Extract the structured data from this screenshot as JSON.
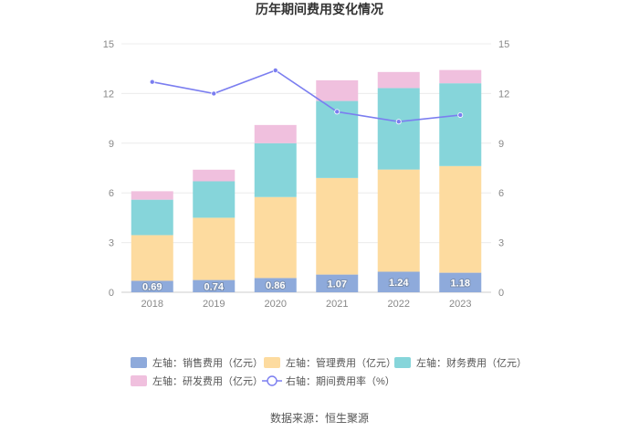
{
  "chart_data": {
    "type": "bar",
    "title": "历年期间费用变化情况",
    "categories": [
      "2018",
      "2019",
      "2020",
      "2021",
      "2022",
      "2023"
    ],
    "stacked": true,
    "left_axis": {
      "min": 0,
      "max": 15,
      "ticks": [
        0,
        3,
        6,
        9,
        12,
        15
      ]
    },
    "right_axis": {
      "min": 0,
      "max": 15,
      "ticks": [
        0,
        3,
        6,
        9,
        12,
        15
      ]
    },
    "series": [
      {
        "name": "左轴：销售费用（亿元）",
        "axis": "left",
        "type": "bar",
        "color": "#8eaadb",
        "values": [
          0.69,
          0.74,
          0.86,
          1.07,
          1.24,
          1.18
        ],
        "show_labels": true
      },
      {
        "name": "左轴：管理费用（亿元）",
        "axis": "left",
        "type": "bar",
        "color": "#fddb9f",
        "values": [
          2.76,
          3.76,
          4.89,
          5.83,
          6.17,
          6.44
        ]
      },
      {
        "name": "左轴：财务费用（亿元）",
        "axis": "left",
        "type": "bar",
        "color": "#86d5da",
        "values": [
          2.14,
          2.2,
          3.25,
          4.65,
          4.92,
          5.0
        ]
      },
      {
        "name": "左轴：研发费用（亿元）",
        "axis": "left",
        "type": "bar",
        "color": "#f0c0de",
        "values": [
          0.51,
          0.7,
          1.1,
          1.25,
          0.97,
          0.8
        ]
      },
      {
        "name": "右轴：期间费用率（%）",
        "axis": "right",
        "type": "line",
        "color": "#7b7ef0",
        "values": [
          12.7,
          12.0,
          13.4,
          10.9,
          10.3,
          10.7
        ]
      }
    ],
    "grid": true,
    "legend_position": "bottom"
  },
  "source": "数据来源：恒生聚源"
}
